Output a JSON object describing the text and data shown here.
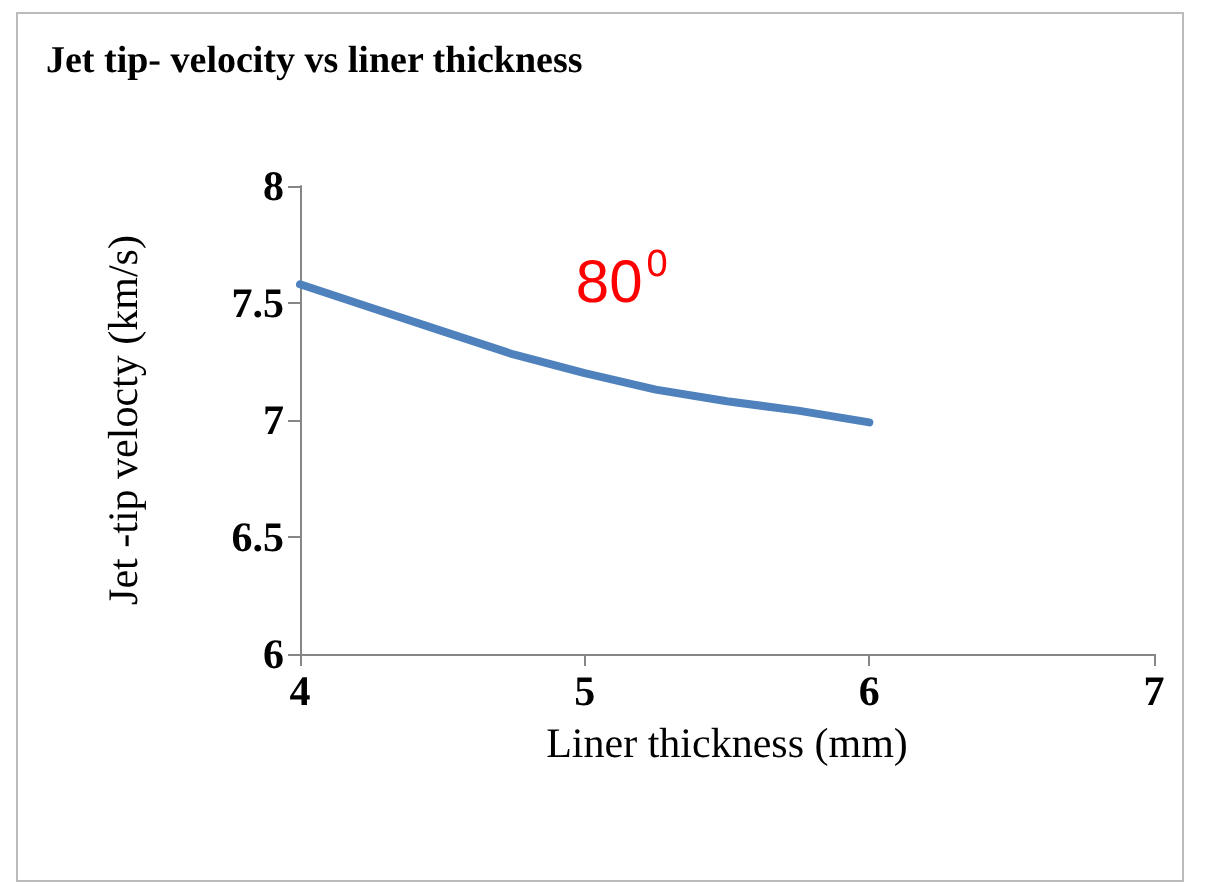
{
  "chart_data": {
    "type": "line",
    "title": "Jet tip- velocity vs liner thickness",
    "xlabel": "Liner thickness (mm)",
    "ylabel": "Jet -tip velocty (km/s)",
    "x": [
      4,
      4.25,
      4.5,
      4.75,
      5,
      5.25,
      5.5,
      5.75,
      6
    ],
    "series": [
      {
        "name": "80$^{0}$",
        "color": "#4f81bd",
        "values": [
          7.58,
          7.48,
          7.38,
          7.28,
          7.2,
          7.13,
          7.08,
          7.04,
          6.99
        ]
      }
    ],
    "xlim": [
      4,
      7
    ],
    "xticks": [
      4,
      5,
      6,
      7
    ],
    "ylim": [
      6,
      8
    ],
    "yticks": [
      6,
      6.5,
      7,
      7.5,
      8
    ],
    "grid": false,
    "legend": false,
    "marker": "none",
    "line_style": "solid"
  }
}
